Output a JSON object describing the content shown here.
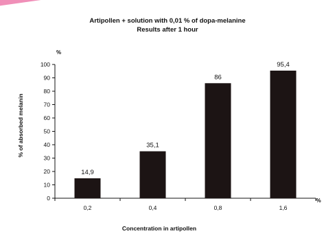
{
  "chart_data": {
    "type": "bar",
    "title": "Artipollen + solution with 0,01 % of dopa-melanine",
    "subtitle": "Results after 1 hour",
    "categories": [
      "0,2",
      "0,4",
      "0,8",
      "1,6"
    ],
    "values": [
      14.9,
      35.1,
      86,
      95.4
    ],
    "data_labels": [
      "14,9",
      "35,1",
      "86",
      "95,4"
    ],
    "xlabel": "Concentration in artipollen",
    "ylabel": "% of absorbed melanin",
    "y_unit": "%",
    "x_unit": "%",
    "ylim": [
      0,
      100
    ],
    "yticks": [
      "0",
      "10",
      "20",
      "30",
      "40",
      "50",
      "60",
      "70",
      "80",
      "90",
      "100"
    ],
    "bar_color": "#1c1414",
    "grid": false,
    "legend": "none"
  },
  "decoration": {
    "stripe_color": "#f08fb8"
  }
}
